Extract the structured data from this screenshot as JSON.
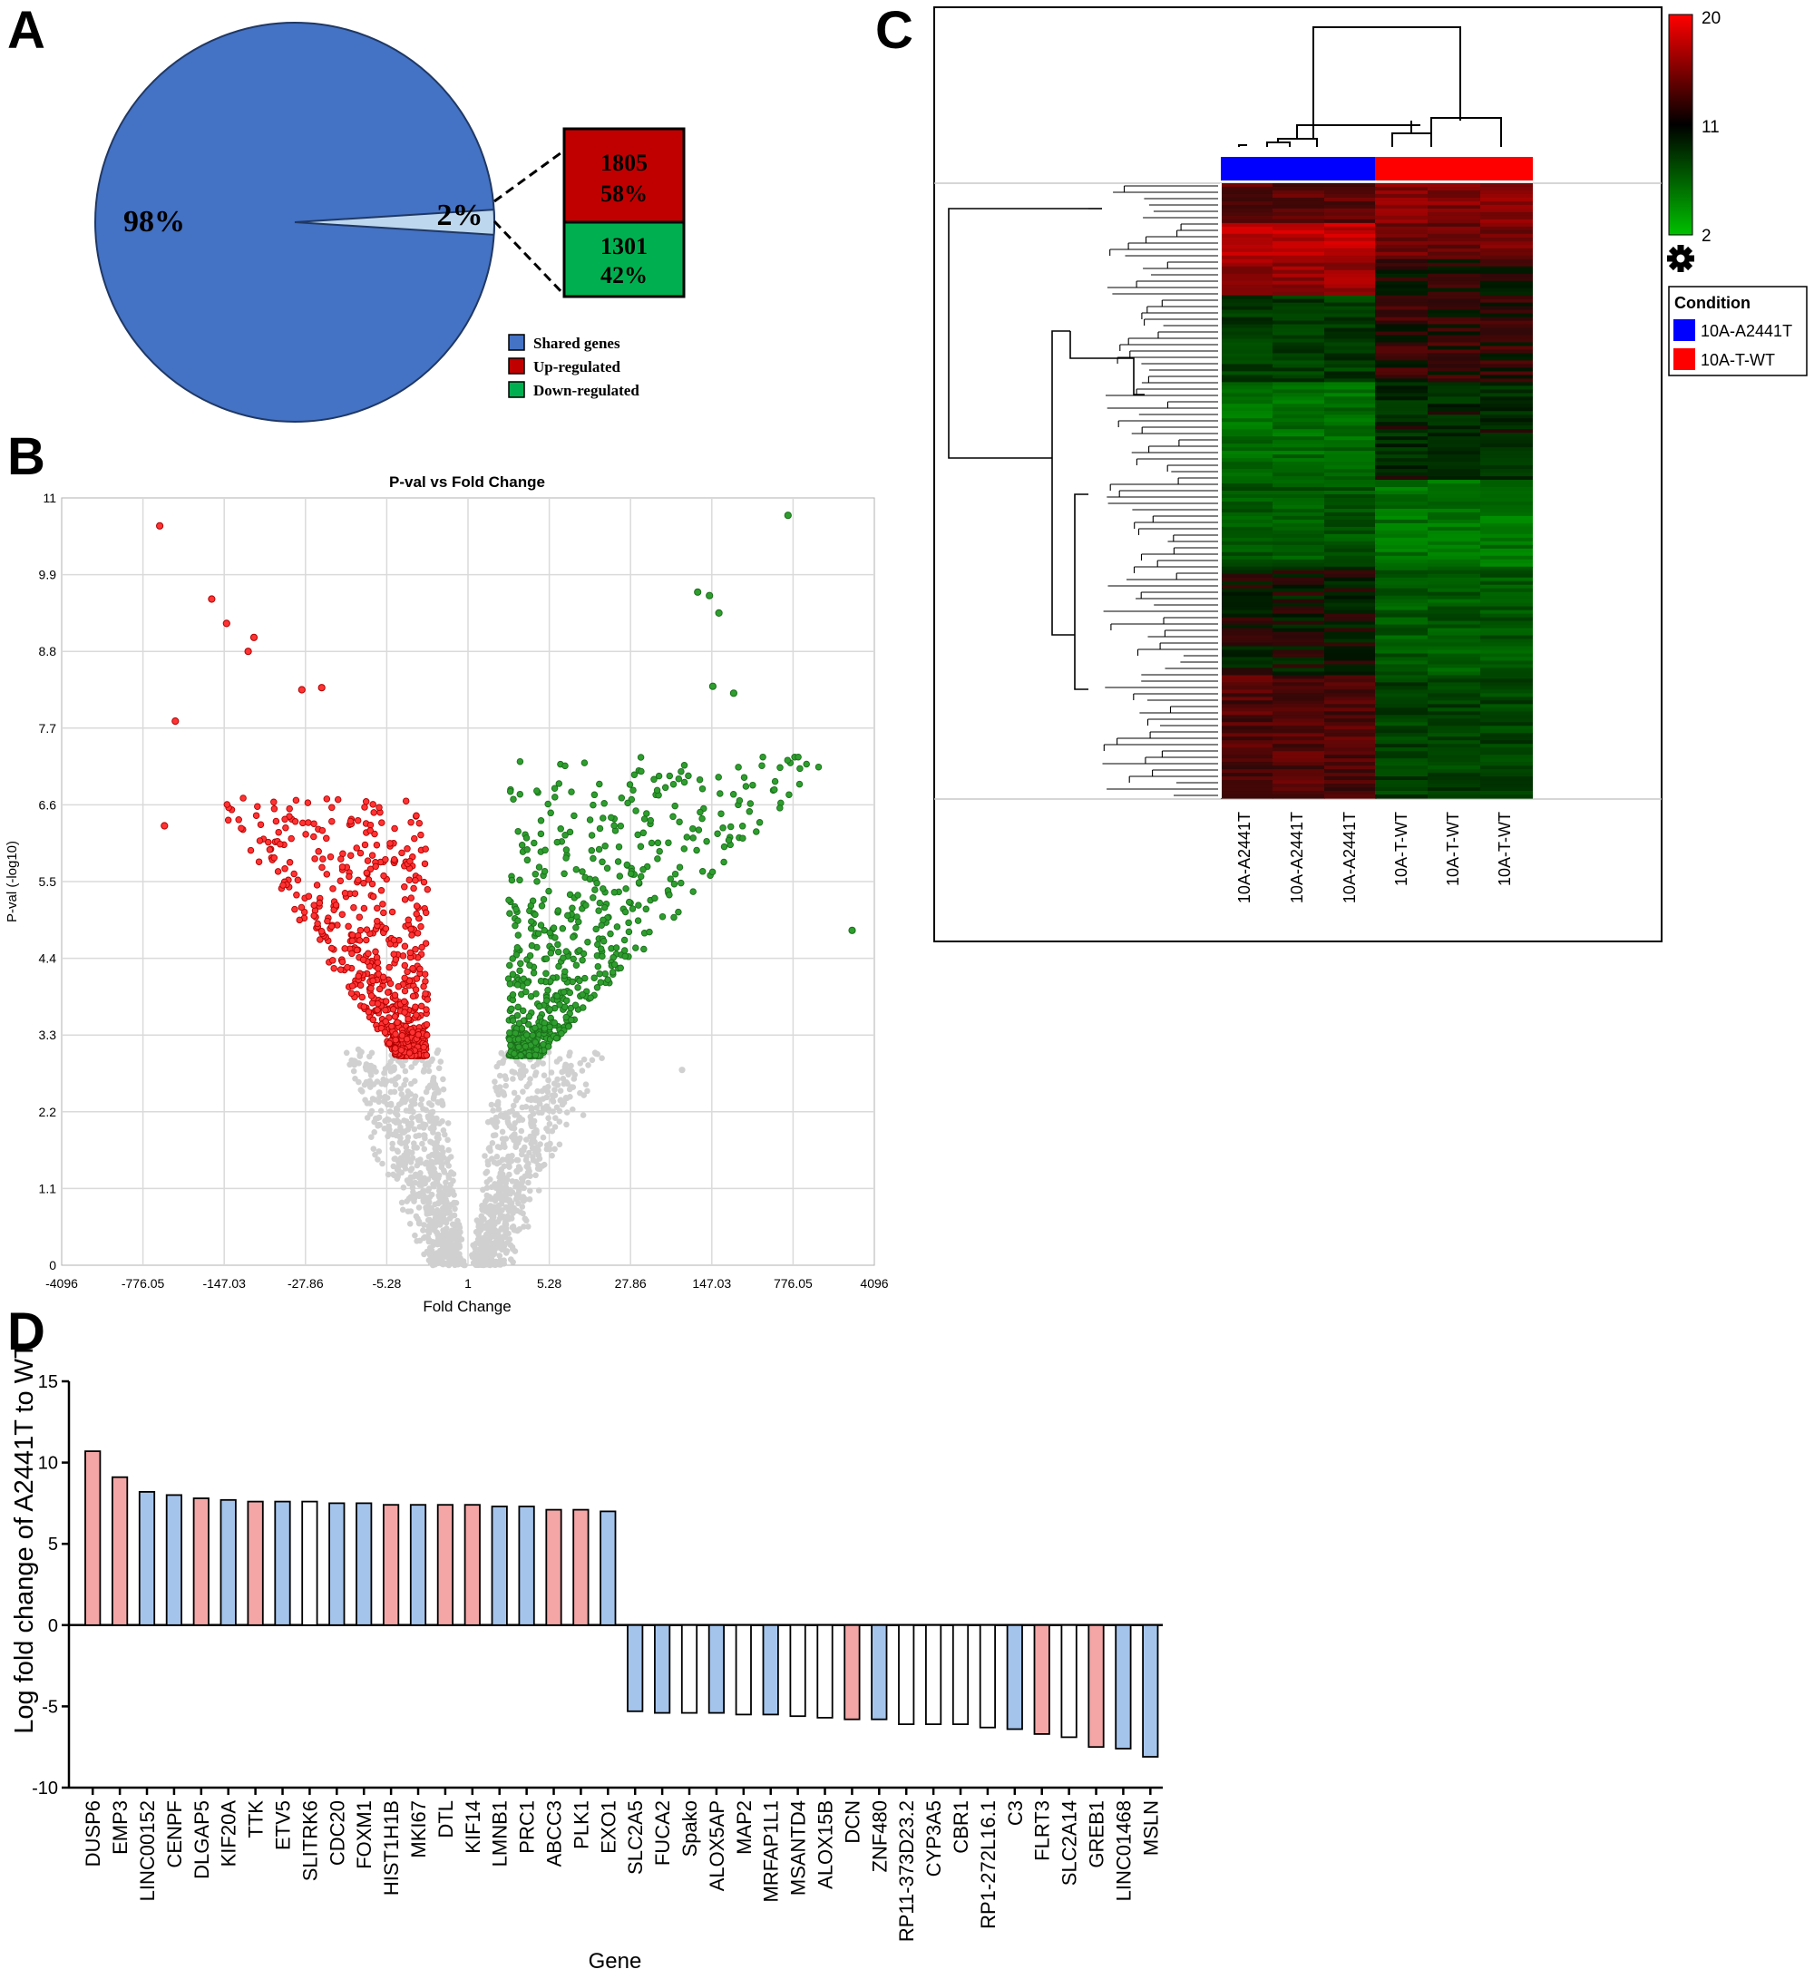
{
  "panels": {
    "a": "A",
    "b": "B",
    "c": "C",
    "d": "D"
  },
  "colors": {
    "pie_main": "#4472C4",
    "pie_slice": "#BDD7EE",
    "up": "#C00000",
    "down": "#00B050",
    "volcano_up": "#FF3333",
    "volcano_down": "#2E9E2E",
    "volcano_ns": "#D0D0D0",
    "bar_red": "#F4A6A6",
    "bar_blue": "#A4C4EC",
    "bar_white": "#FFFFFF",
    "cond_a": "#0000FF",
    "cond_b": "#FF0000"
  },
  "chart_data": [
    {
      "panel": "A",
      "type": "pie",
      "slices": [
        {
          "label": "98%",
          "value": 98,
          "name": "Shared genes"
        },
        {
          "label": "2%",
          "value": 2
        }
      ],
      "breakdown": [
        {
          "count": "1805",
          "percent": "58%",
          "name": "Up-regulated"
        },
        {
          "count": "1301",
          "percent": "42%",
          "name": "Down-regulated"
        }
      ],
      "legend": [
        "Shared genes",
        "Up-regulated",
        "Down-regulated"
      ]
    },
    {
      "panel": "B",
      "type": "scatter",
      "title": "P-val vs Fold Change",
      "xlabel": "Fold Change",
      "ylabel": "P-val (-log10)",
      "xticks": [
        "-4096",
        "-776.05",
        "-147.03",
        "-27.86",
        "-5.28",
        "1",
        "5.28",
        "27.86",
        "147.03",
        "776.05",
        "4096"
      ],
      "yticks": [
        "0",
        "1.1",
        "2.2",
        "3.3",
        "4.4",
        "5.5",
        "6.6",
        "7.7",
        "8.8",
        "9.9",
        "11"
      ],
      "ylim": [
        0,
        11
      ],
      "grid": true,
      "highlighted": [
        {
          "fold_change": -550,
          "p": 10.6
        },
        {
          "fold_change": -190,
          "p": 9.55
        },
        {
          "fold_change": -140,
          "p": 9.2
        },
        {
          "fold_change": -80,
          "p": 9.0
        },
        {
          "fold_change": -90,
          "p": 8.8
        },
        {
          "fold_change": -30,
          "p": 8.25
        },
        {
          "fold_change": -20,
          "p": 8.28
        },
        {
          "fold_change": -400,
          "p": 7.8
        },
        {
          "fold_change": -500,
          "p": 6.3
        },
        {
          "fold_change": 700,
          "p": 10.75
        },
        {
          "fold_change": 110,
          "p": 9.65
        },
        {
          "fold_change": 140,
          "p": 9.6
        },
        {
          "fold_change": 170,
          "p": 9.35
        },
        {
          "fold_change": 150,
          "p": 8.3
        },
        {
          "fold_change": 230,
          "p": 8.2
        },
        {
          "fold_change": 2600,
          "p": 4.8
        },
        {
          "fold_change": 80,
          "p": 2.8
        }
      ]
    },
    {
      "panel": "C",
      "type": "heatmap",
      "samples": [
        "10A-A2441T",
        "10A-A2441T",
        "10A-A2441T",
        "10A-T-WT",
        "10A-T-WT",
        "10A-T-WT"
      ],
      "scale": {
        "max": "20",
        "mid": "11",
        "min": "2"
      },
      "legend_title": "Condition",
      "conditions": [
        "10A-A2441T",
        "10A-T-WT"
      ]
    },
    {
      "panel": "D",
      "type": "bar",
      "ylabel": "Log fold change of A2441T to WT",
      "xlabel": "Gene",
      "ylim": [
        -10,
        15
      ],
      "yticks": [
        "-10",
        "-5",
        "0",
        "5",
        "10",
        "15"
      ],
      "categories": [
        "DUSP6",
        "EMP3",
        "LINC00152",
        "CENPF",
        "DLGAP5",
        "KIF20A",
        "TTK",
        "ETV5",
        "SLITRK6",
        "CDC20",
        "FOXM1",
        "HIST1H1B",
        "MKI67",
        "DTL",
        "KIF14",
        "LMNB1",
        "PRC1",
        "ABCC3",
        "PLK1",
        "EXO1",
        "SLC2A5",
        "FUCA2",
        "Spako",
        "ALOX5AP",
        "MAP2",
        "MRFAP1L1",
        "MSANTD4",
        "ALOX15B",
        "DCN",
        "ZNF480",
        "RP11-373D23.2",
        "CYP3A5",
        "CBR1",
        "RP1-272L16.1",
        "C3",
        "FLRT3",
        "SLC2A14",
        "GREB1",
        "LINC01468",
        "MSLN"
      ],
      "values": [
        10.7,
        9.1,
        8.2,
        8.0,
        7.8,
        7.7,
        7.6,
        7.6,
        7.6,
        7.5,
        7.5,
        7.4,
        7.4,
        7.4,
        7.4,
        7.3,
        7.3,
        7.1,
        7.1,
        7.0,
        -5.3,
        -5.4,
        -5.4,
        -5.4,
        -5.5,
        -5.5,
        -5.6,
        -5.7,
        -5.8,
        -5.8,
        -6.1,
        -6.1,
        -6.1,
        -6.3,
        -6.4,
        -6.7,
        -6.9,
        -7.5,
        -7.6,
        -8.1
      ],
      "bar_colors": [
        "red",
        "red",
        "blue",
        "blue",
        "red",
        "blue",
        "red",
        "blue",
        "white",
        "blue",
        "blue",
        "red",
        "blue",
        "red",
        "red",
        "blue",
        "blue",
        "red",
        "red",
        "blue",
        "blue",
        "blue",
        "white",
        "blue",
        "white",
        "blue",
        "white",
        "white",
        "red",
        "blue",
        "white",
        "white",
        "white",
        "white",
        "blue",
        "red",
        "white",
        "red",
        "blue",
        "blue"
      ]
    }
  ]
}
